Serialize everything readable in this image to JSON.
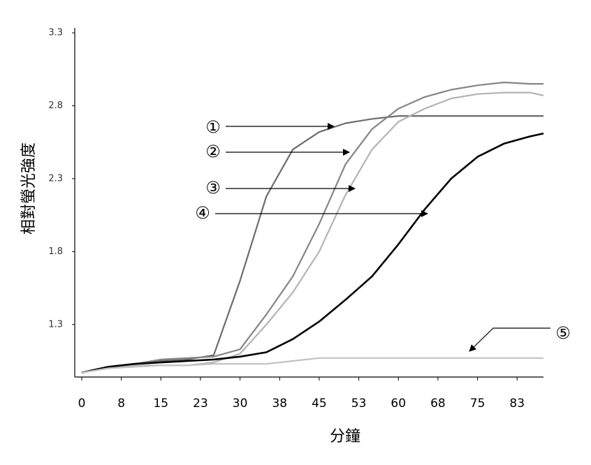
{
  "chart_data": {
    "type": "line",
    "y_label": "相對螢光強度",
    "x_label": "分鐘",
    "x": [
      0,
      5,
      10,
      15,
      20,
      25,
      30,
      35,
      40,
      45,
      50,
      55,
      60,
      65,
      70,
      75,
      80,
      85,
      87.5
    ],
    "series": [
      {
        "name": "①",
        "color": "#6b6b6b",
        "values": [
          0.97,
          1.01,
          1.03,
          1.05,
          1.06,
          1.09,
          1.6,
          2.18,
          2.5,
          2.62,
          2.68,
          2.71,
          2.73,
          2.73,
          2.73,
          2.73,
          2.73,
          2.73,
          2.73
        ]
      },
      {
        "name": "②",
        "color": "#858585",
        "values": [
          0.97,
          1.01,
          1.03,
          1.06,
          1.07,
          1.08,
          1.13,
          1.37,
          1.63,
          1.99,
          2.4,
          2.64,
          2.78,
          2.86,
          2.91,
          2.94,
          2.96,
          2.95,
          2.95
        ]
      },
      {
        "name": "③",
        "color": "#b3b3b3",
        "values": [
          0.97,
          1.0,
          1.02,
          1.02,
          1.02,
          1.04,
          1.1,
          1.3,
          1.52,
          1.8,
          2.19,
          2.5,
          2.69,
          2.78,
          2.85,
          2.88,
          2.89,
          2.89,
          2.87
        ]
      },
      {
        "name": "④",
        "color": "#000000",
        "values": [
          0.97,
          1.01,
          1.03,
          1.04,
          1.05,
          1.06,
          1.08,
          1.11,
          1.2,
          1.32,
          1.47,
          1.63,
          1.85,
          2.09,
          2.3,
          2.45,
          2.54,
          2.59,
          2.61
        ]
      },
      {
        "name": "⑤",
        "color": "#c2c2c2",
        "values": [
          0.97,
          1.0,
          1.01,
          1.02,
          1.02,
          1.03,
          1.03,
          1.03,
          1.05,
          1.07,
          1.07,
          1.07,
          1.07,
          1.07,
          1.07,
          1.07,
          1.07,
          1.07,
          1.07
        ]
      }
    ],
    "xlim": [
      0,
      87.5
    ],
    "xticks": [
      0,
      {
        "value": 7.5,
        "label": "8"
      },
      15,
      {
        "value": 22.5,
        "label": "23"
      },
      30,
      {
        "value": 37.5,
        "label": "38"
      },
      45,
      {
        "value": 52.5,
        "label": "53"
      },
      60,
      {
        "value": 67.5,
        "label": "68"
      },
      75,
      {
        "value": 82.5,
        "label": "83"
      }
    ],
    "ylim": [
      0.94,
      3.3
    ],
    "yticks": [
      1.3,
      1.8,
      2.3,
      2.8,
      3.3
    ],
    "grid": false
  }
}
